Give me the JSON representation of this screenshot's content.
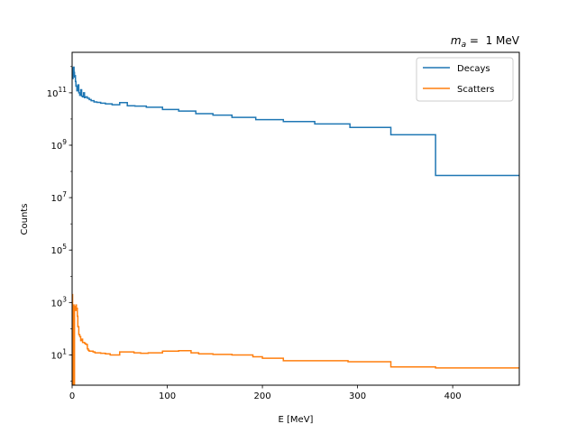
{
  "chart_data": {
    "type": "line",
    "step": true,
    "title_math": {
      "symbol": "m",
      "subscript": "a",
      "rest": " =  1 MeV"
    },
    "xlabel": "E [MeV]",
    "ylabel": "Counts",
    "xlim": [
      0,
      470
    ],
    "ylim": [
      0.7,
      3500000000000.0
    ],
    "yscale": "log",
    "xticks": [
      0,
      100,
      200,
      300,
      400
    ],
    "yticks": [
      {
        "value": 10,
        "base": "10",
        "exp": "1"
      },
      {
        "value": 1000,
        "base": "10",
        "exp": "3"
      },
      {
        "value": 100000,
        "base": "10",
        "exp": "5"
      },
      {
        "value": 10000000,
        "base": "10",
        "exp": "7"
      },
      {
        "value": 1000000000,
        "base": "10",
        "exp": "9"
      },
      {
        "value": 100000000000,
        "base": "10",
        "exp": "11"
      }
    ],
    "grid": false,
    "legend_position": "top-right",
    "series": [
      {
        "name": "Decays",
        "color": "#1f77b4",
        "x": [
          0.5,
          1,
          1.5,
          2,
          2.5,
          3,
          3.5,
          4,
          5,
          6,
          7,
          8,
          9,
          10,
          11,
          12,
          13,
          14,
          16,
          18,
          20,
          23,
          26,
          30,
          35,
          42,
          50,
          58,
          66,
          78,
          95,
          112,
          130,
          148,
          168,
          193,
          222,
          255,
          292,
          335,
          382,
          440,
          470
        ],
        "y": [
          900000000000.0,
          350000000000.0,
          450000000000.0,
          950000000000.0,
          600000000000.0,
          400000000000.0,
          450000000000.0,
          270000000000.0,
          180000000000.0,
          120000000000.0,
          200000000000.0,
          100000000000.0,
          80000000000.0,
          130000000000.0,
          75000000000.0,
          70000000000.0,
          100000000000.0,
          65000000000.0,
          70000000000.0,
          62000000000.0,
          55000000000.0,
          50000000000.0,
          45000000000.0,
          43000000000.0,
          40000000000.0,
          38000000000.0,
          35000000000.0,
          42000000000.0,
          32000000000.0,
          31000000000.0,
          28000000000.0,
          23000000000.0,
          20000000000.0,
          16000000000.0,
          14000000000.0,
          11500000000.0,
          9500000000.0,
          8000000000.0,
          6500000000.0,
          4800000000.0,
          2500000000.0,
          70000000.0,
          70000000.0
        ]
      },
      {
        "name": "Scatters",
        "color": "#ff7f0e",
        "x": [
          0.5,
          1.5,
          2,
          2.5,
          3,
          4,
          4.5,
          5.5,
          6,
          7,
          8,
          9,
          10,
          11,
          12,
          13,
          14,
          15,
          16,
          17,
          18,
          20,
          22,
          24,
          30,
          35,
          40,
          43,
          50,
          58,
          65,
          72,
          80,
          95,
          112,
          125,
          133,
          148,
          168,
          190,
          200,
          222,
          255,
          290,
          335,
          382,
          440,
          470
        ],
        "y": [
          2000,
          0.5,
          800,
          0.5,
          700,
          500,
          800,
          600,
          300,
          120,
          60,
          50,
          35,
          40,
          30,
          30,
          28,
          26,
          25,
          17,
          15,
          14,
          14,
          13,
          12,
          11.5,
          11,
          10,
          10,
          13,
          13,
          12,
          11.5,
          12,
          14,
          14.5,
          12,
          11,
          10.5,
          10,
          8.5,
          7.5,
          6,
          6,
          5.5,
          3.5,
          3.2,
          3.2
        ]
      }
    ]
  }
}
